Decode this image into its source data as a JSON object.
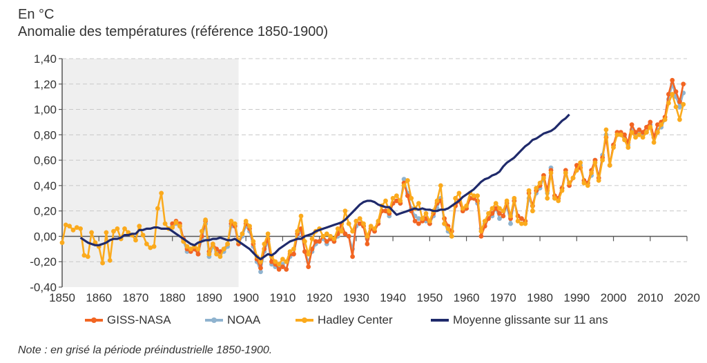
{
  "header": {
    "unit": "En °C",
    "title": "Anomalie des températures (référence 1850-1900)"
  },
  "note": "Note : en grisé la période préindustrielle 1850-1900.",
  "chart_data": {
    "type": "line",
    "title": "Anomalie des températures (référence 1850-1900)",
    "ylabel": "En °C",
    "xlabel": "",
    "xlim": [
      1850,
      2020
    ],
    "ylim": [
      -0.4,
      1.4
    ],
    "grid": true,
    "legend_position": "bottom",
    "shaded_period": {
      "from": 1850,
      "to": 1898,
      "label": "période préindustrielle 1850-1900",
      "color": "#efefef"
    },
    "x_ticks": [
      "1850",
      "1860",
      "1870",
      "1880",
      "1890",
      "1900",
      "1910",
      "1920",
      "1930",
      "1940",
      "1950",
      "1960",
      "1970",
      "1980",
      "1990",
      "2000",
      "2010",
      "2020"
    ],
    "y_ticks": [
      "-0,40",
      "-0,20",
      "0,00",
      "0,20",
      "0,40",
      "0,60",
      "0,80",
      "1,00",
      "1,20",
      "1,40"
    ],
    "y_tick_values": [
      -0.4,
      -0.2,
      0,
      0.2,
      0.4,
      0.6,
      0.8,
      1.0,
      1.2,
      1.4
    ],
    "series": [
      {
        "name": "GISS-NASA",
        "color": "#f26522",
        "marker": "circle",
        "start_year": 1880,
        "values": [
          0.1,
          0.12,
          0.1,
          -0.02,
          -0.1,
          -0.12,
          -0.1,
          -0.14,
          0.0,
          0.12,
          -0.12,
          -0.06,
          -0.1,
          -0.12,
          -0.1,
          -0.06,
          0.1,
          0.08,
          -0.06,
          0.02,
          0.1,
          0.06,
          -0.06,
          -0.18,
          -0.25,
          -0.1,
          -0.02,
          -0.2,
          -0.22,
          -0.26,
          -0.24,
          -0.26,
          -0.14,
          -0.14,
          0.02,
          0.06,
          -0.12,
          -0.24,
          -0.1,
          -0.04,
          -0.04,
          0.0,
          -0.04,
          -0.02,
          -0.04,
          0.02,
          0.1,
          0.02,
          0.0,
          -0.16,
          0.12,
          0.1,
          0.08,
          -0.06,
          0.06,
          0.04,
          0.1,
          0.2,
          0.2,
          0.18,
          0.26,
          0.28,
          0.26,
          0.42,
          0.32,
          0.2,
          0.12,
          0.1,
          0.12,
          0.14,
          0.1,
          0.18,
          0.26,
          0.28,
          0.14,
          0.08,
          0.04,
          0.24,
          0.28,
          0.2,
          0.22,
          0.3,
          0.3,
          0.28,
          0.0,
          0.08,
          0.14,
          0.18,
          0.22,
          0.18,
          0.16,
          0.26,
          0.14,
          0.28,
          0.16,
          0.14,
          0.12,
          0.34,
          0.24,
          0.36,
          0.4,
          0.48,
          0.36,
          0.52,
          0.32,
          0.3,
          0.38,
          0.52,
          0.4,
          0.46,
          0.56,
          0.54,
          0.44,
          0.42,
          0.52,
          0.6,
          0.46,
          0.62,
          0.78,
          0.56,
          0.72,
          0.82,
          0.82,
          0.8,
          0.74,
          0.88,
          0.82,
          0.84,
          0.82,
          0.86,
          0.9,
          0.78,
          0.88,
          0.9,
          0.94,
          1.12,
          1.23,
          1.14,
          1.06,
          1.2
        ]
      },
      {
        "name": "NOAA",
        "color": "#8fb3cf",
        "marker": "circle",
        "start_year": 1880,
        "values": [
          0.08,
          0.1,
          0.08,
          -0.04,
          -0.12,
          -0.1,
          -0.1,
          -0.14,
          -0.02,
          0.1,
          -0.16,
          -0.08,
          -0.12,
          -0.14,
          -0.12,
          -0.08,
          0.08,
          0.08,
          -0.06,
          0.0,
          0.08,
          0.04,
          -0.08,
          -0.2,
          -0.28,
          -0.12,
          -0.04,
          -0.22,
          -0.24,
          -0.24,
          -0.22,
          -0.26,
          -0.16,
          -0.14,
          0.0,
          0.04,
          -0.12,
          -0.2,
          -0.12,
          -0.06,
          -0.04,
          -0.02,
          -0.06,
          -0.02,
          -0.04,
          0.0,
          0.1,
          0.02,
          0.0,
          -0.1,
          0.08,
          0.1,
          0.08,
          -0.02,
          0.06,
          0.04,
          0.1,
          0.2,
          0.2,
          0.16,
          0.26,
          0.28,
          0.26,
          0.45,
          0.34,
          0.22,
          0.16,
          0.14,
          0.14,
          0.12,
          0.1,
          0.16,
          0.22,
          0.3,
          0.1,
          0.04,
          0.0,
          0.24,
          0.28,
          0.2,
          0.22,
          0.3,
          0.3,
          0.26,
          0.06,
          0.1,
          0.14,
          0.16,
          0.22,
          0.14,
          0.16,
          0.24,
          0.1,
          0.28,
          0.16,
          0.14,
          0.12,
          0.3,
          0.24,
          0.34,
          0.38,
          0.46,
          0.34,
          0.54,
          0.3,
          0.3,
          0.38,
          0.5,
          0.4,
          0.46,
          0.52,
          0.56,
          0.44,
          0.42,
          0.48,
          0.6,
          0.46,
          0.64,
          0.8,
          0.56,
          0.72,
          0.8,
          0.8,
          0.78,
          0.72,
          0.84,
          0.8,
          0.82,
          0.8,
          0.82,
          0.88,
          0.78,
          0.84,
          0.86,
          0.92,
          1.08,
          1.2,
          1.1,
          1.02,
          1.13
        ]
      },
      {
        "name": "Hadley Center",
        "color": "#fbaa1d",
        "marker": "circle",
        "start_year": 1850,
        "values": [
          -0.05,
          0.09,
          0.08,
          0.05,
          0.07,
          0.06,
          -0.15,
          -0.16,
          0.03,
          -0.05,
          -0.08,
          -0.21,
          0.03,
          -0.19,
          0.04,
          0.06,
          -0.02,
          0.06,
          0.03,
          0.01,
          -0.03,
          0.08,
          0.01,
          -0.06,
          -0.09,
          -0.08,
          0.22,
          0.34,
          0.1,
          0.06,
          0.07,
          0.11,
          0.08,
          -0.04,
          -0.08,
          -0.1,
          -0.08,
          -0.1,
          0.04,
          0.13,
          -0.14,
          -0.06,
          -0.14,
          -0.16,
          -0.1,
          -0.06,
          0.12,
          0.1,
          -0.04,
          0.02,
          0.12,
          0.08,
          -0.04,
          -0.16,
          -0.2,
          -0.06,
          0.02,
          -0.16,
          -0.2,
          -0.22,
          -0.18,
          -0.2,
          -0.12,
          -0.1,
          0.04,
          0.16,
          -0.04,
          -0.14,
          -0.02,
          0.04,
          0.06,
          0.0,
          0.02,
          0.0,
          -0.02,
          0.06,
          0.04,
          0.2,
          0.1,
          0.04,
          0.12,
          0.14,
          0.1,
          0.0,
          0.08,
          0.06,
          0.12,
          0.24,
          0.28,
          0.2,
          0.3,
          0.32,
          0.28,
          0.4,
          0.44,
          0.3,
          0.22,
          0.26,
          0.14,
          0.18,
          0.12,
          0.2,
          0.28,
          0.4,
          0.1,
          0.06,
          0.0,
          0.3,
          0.34,
          0.22,
          0.24,
          0.34,
          0.32,
          0.32,
          0.04,
          0.12,
          0.18,
          0.22,
          0.26,
          0.22,
          0.2,
          0.28,
          0.16,
          0.3,
          0.12,
          0.1,
          0.1,
          0.36,
          0.2,
          0.38,
          0.42,
          0.46,
          0.3,
          0.5,
          0.3,
          0.28,
          0.36,
          0.5,
          0.42,
          0.46,
          0.52,
          0.58,
          0.42,
          0.4,
          0.5,
          0.58,
          0.44,
          0.6,
          0.84,
          0.56,
          0.7,
          0.8,
          0.8,
          0.76,
          0.7,
          0.82,
          0.78,
          0.8,
          0.78,
          0.82,
          0.86,
          0.74,
          0.82,
          0.88,
          0.92,
          1.05,
          1.12,
          1.02,
          0.92,
          1.04
        ]
      },
      {
        "name": "Moyenne glissante sur 11 ans",
        "color": "#1f2a6b",
        "marker": "none",
        "start_year": 1855,
        "values": [
          -0.01,
          -0.03,
          -0.05,
          -0.06,
          -0.07,
          -0.07,
          -0.06,
          -0.05,
          -0.03,
          -0.02,
          -0.02,
          -0.01,
          0.01,
          0.01,
          0.02,
          0.02,
          0.05,
          0.05,
          0.06,
          0.06,
          0.07,
          0.07,
          0.06,
          0.06,
          0.06,
          0.04,
          0.02,
          0.0,
          -0.02,
          -0.04,
          -0.06,
          -0.07,
          -0.05,
          -0.04,
          -0.03,
          -0.03,
          -0.02,
          -0.02,
          -0.01,
          -0.02,
          -0.03,
          -0.03,
          -0.02,
          -0.04,
          -0.06,
          -0.08,
          -0.1,
          -0.13,
          -0.16,
          -0.18,
          -0.16,
          -0.14,
          -0.15,
          -0.13,
          -0.1,
          -0.08,
          -0.06,
          -0.04,
          -0.03,
          -0.02,
          -0.02,
          0.0,
          0.01,
          0.02,
          0.04,
          0.05,
          0.06,
          0.07,
          0.08,
          0.09,
          0.1,
          0.11,
          0.13,
          0.16,
          0.19,
          0.22,
          0.25,
          0.27,
          0.28,
          0.28,
          0.27,
          0.25,
          0.24,
          0.23,
          0.23,
          0.2,
          0.17,
          0.18,
          0.19,
          0.2,
          0.21,
          0.22,
          0.21,
          0.22,
          0.21,
          0.21,
          0.2,
          0.2,
          0.21,
          0.21,
          0.22,
          0.24,
          0.26,
          0.28,
          0.31,
          0.33,
          0.35,
          0.37,
          0.4,
          0.43,
          0.45,
          0.46,
          0.48,
          0.49,
          0.51,
          0.55,
          0.58,
          0.6,
          0.62,
          0.65,
          0.68,
          0.71,
          0.73,
          0.76,
          0.77,
          0.79,
          0.81,
          0.82,
          0.83,
          0.85,
          0.88,
          0.91,
          0.93,
          0.96
        ]
      }
    ]
  },
  "legend": [
    {
      "label": "GISS-NASA",
      "color": "#f26522",
      "marker": true
    },
    {
      "label": "NOAA",
      "color": "#8fb3cf",
      "marker": true
    },
    {
      "label": "Hadley Center",
      "color": "#fbaa1d",
      "marker": true
    },
    {
      "label": "Moyenne glissante sur 11 ans",
      "color": "#1f2a6b",
      "marker": false
    }
  ]
}
